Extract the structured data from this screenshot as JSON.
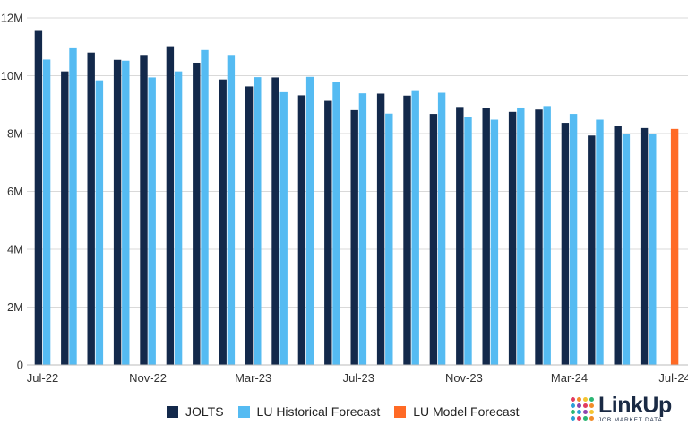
{
  "chart_data": {
    "type": "bar",
    "title": "",
    "xlabel": "",
    "ylabel": "",
    "ylim": [
      0,
      12000000
    ],
    "y_ticks": [
      {
        "value": 0,
        "label": "0"
      },
      {
        "value": 2000000,
        "label": "2M"
      },
      {
        "value": 4000000,
        "label": "4M"
      },
      {
        "value": 6000000,
        "label": "6M"
      },
      {
        "value": 8000000,
        "label": "8M"
      },
      {
        "value": 10000000,
        "label": "10M"
      },
      {
        "value": 12000000,
        "label": "12M"
      }
    ],
    "categories": [
      "Jul-22",
      "Aug-22",
      "Sep-22",
      "Oct-22",
      "Nov-22",
      "Dec-22",
      "Jan-23",
      "Feb-23",
      "Mar-23",
      "Apr-23",
      "May-23",
      "Jun-23",
      "Jul-23",
      "Aug-23",
      "Sep-23",
      "Oct-23",
      "Nov-23",
      "Dec-23",
      "Jan-24",
      "Feb-24",
      "Mar-24",
      "Apr-24",
      "May-24",
      "Jun-24",
      "Jul-24"
    ],
    "x_tick_labels": [
      {
        "index": 0,
        "label": "Jul-22"
      },
      {
        "index": 4,
        "label": "Nov-22"
      },
      {
        "index": 8,
        "label": "Mar-23"
      },
      {
        "index": 12,
        "label": "Jul-23"
      },
      {
        "index": 16,
        "label": "Nov-23"
      },
      {
        "index": 20,
        "label": "Mar-24"
      },
      {
        "index": 24,
        "label": "Jul-24"
      }
    ],
    "grid": true,
    "legend_position": "bottom",
    "series": [
      {
        "name": "JOLTS",
        "color": "#13294b",
        "values": [
          11550000,
          10150000,
          10800000,
          10550000,
          10720000,
          11020000,
          10450000,
          9870000,
          9630000,
          9940000,
          9320000,
          9130000,
          8810000,
          9380000,
          9310000,
          8680000,
          8920000,
          8890000,
          8750000,
          8830000,
          8370000,
          7930000,
          8250000,
          8190000,
          null
        ]
      },
      {
        "name": "LU Historical Forecast",
        "color": "#55bbf2",
        "values": [
          10560000,
          10980000,
          9840000,
          10520000,
          9940000,
          10150000,
          10890000,
          10720000,
          9950000,
          9430000,
          9960000,
          9770000,
          9390000,
          8690000,
          9500000,
          9410000,
          8570000,
          8480000,
          8900000,
          8950000,
          8680000,
          8480000,
          7970000,
          7980000,
          null
        ]
      },
      {
        "name": "LU Model Forecast",
        "color": "#ff6a25",
        "values": [
          null,
          null,
          null,
          null,
          null,
          null,
          null,
          null,
          null,
          null,
          null,
          null,
          null,
          null,
          null,
          null,
          null,
          null,
          null,
          null,
          null,
          null,
          null,
          null,
          8160000
        ]
      }
    ]
  },
  "logo": {
    "name": "LinkUp",
    "tagline": "JOB MARKET DATA",
    "dot_colors": [
      "#e23b5f",
      "#f28c28",
      "#f4c430",
      "#2bb673",
      "#2a9fd8",
      "#8e44ad",
      "#e23b5f",
      "#f28c28",
      "#2bb673",
      "#2a9fd8",
      "#8e44ad",
      "#f4c430",
      "#2a9fd8",
      "#e23b5f",
      "#2bb673",
      "#f28c28"
    ]
  }
}
